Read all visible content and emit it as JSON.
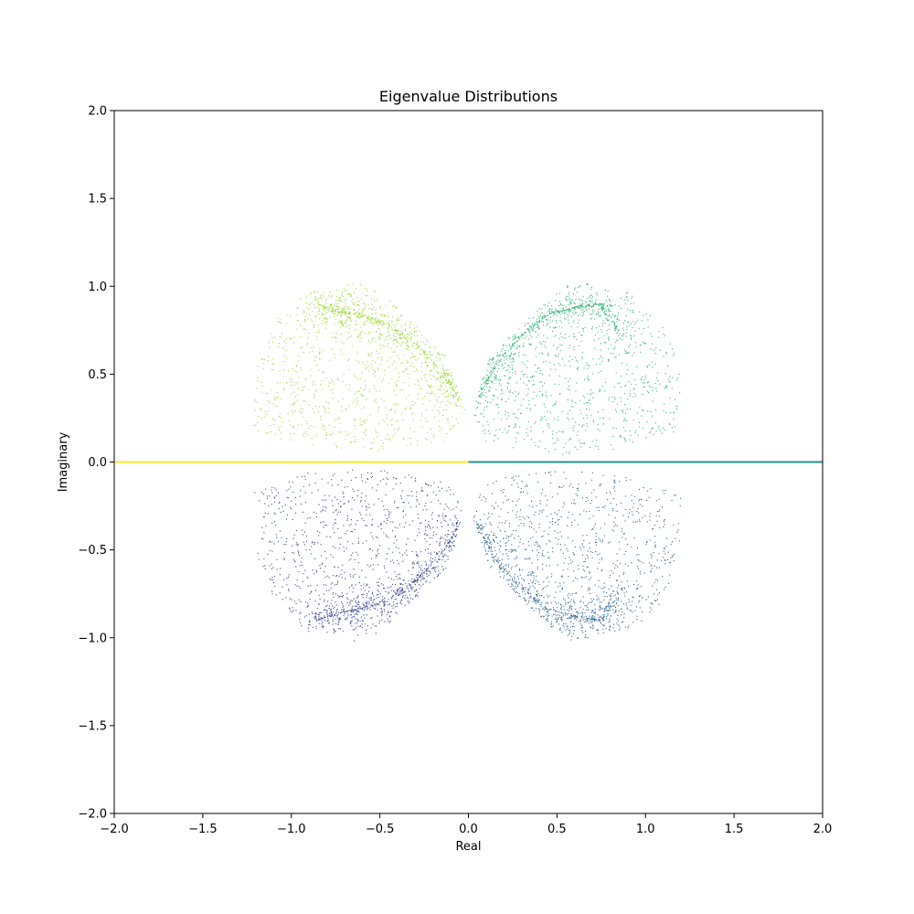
{
  "chart_data": {
    "type": "scatter",
    "title": "Eigenvalue Distributions",
    "xlabel": "Real",
    "ylabel": "Imaginary",
    "xlim": [
      -2.0,
      2.0
    ],
    "ylim": [
      -2.0,
      2.0
    ],
    "x_ticks": [
      "−2.0",
      "−1.5",
      "−1.0",
      "−0.5",
      "0.0",
      "0.5",
      "1.0",
      "1.5",
      "2.0"
    ],
    "y_ticks": [
      "−2.0",
      "−1.5",
      "−1.0",
      "−0.5",
      "0.0",
      "0.5",
      "1.0",
      "1.5",
      "2.0"
    ],
    "grid": false,
    "legend": "none",
    "colormap": "viridis",
    "series": [
      {
        "color": "#fde725",
        "kind": "real_axis_segment",
        "x_range": [
          -2.0,
          0.0
        ],
        "y": 0.0
      },
      {
        "color": "#21918c",
        "kind": "real_axis_segment",
        "x_range": [
          0.0,
          2.0
        ],
        "y": 0.0
      },
      {
        "color": "#a0da39",
        "kind": "cloud",
        "approx_points": 1500,
        "outline": [
          [
            -1.22,
            0.18
          ],
          [
            -1.19,
            0.55
          ],
          [
            -1.08,
            0.82
          ],
          [
            -0.9,
            0.97
          ],
          [
            -0.75,
            0.98
          ],
          [
            -0.62,
            1.04
          ],
          [
            -0.5,
            0.97
          ],
          [
            -0.3,
            0.78
          ],
          [
            -0.12,
            0.6
          ],
          [
            -0.02,
            0.3
          ],
          [
            -0.1,
            0.12
          ],
          [
            -0.55,
            0.06
          ],
          [
            -0.9,
            0.1
          ],
          [
            -1.2,
            0.12
          ]
        ],
        "dense_band": [
          [
            -0.85,
            0.9
          ],
          [
            -0.75,
            0.86
          ],
          [
            -0.62,
            0.84
          ],
          [
            -0.45,
            0.78
          ],
          [
            -0.28,
            0.66
          ],
          [
            -0.12,
            0.48
          ],
          [
            -0.05,
            0.35
          ]
        ]
      },
      {
        "color": "#3e4a89",
        "kind": "cloud",
        "approx_points": 1500,
        "outline": [
          [
            -1.2,
            -0.12
          ],
          [
            -1.19,
            -0.55
          ],
          [
            -1.08,
            -0.82
          ],
          [
            -0.9,
            -0.97
          ],
          [
            -0.75,
            -0.98
          ],
          [
            -0.62,
            -1.04
          ],
          [
            -0.5,
            -0.97
          ],
          [
            -0.3,
            -0.78
          ],
          [
            -0.12,
            -0.6
          ],
          [
            -0.02,
            -0.3
          ],
          [
            -0.1,
            -0.12
          ],
          [
            -0.55,
            -0.03
          ],
          [
            -0.9,
            -0.06
          ],
          [
            -1.22,
            -0.18
          ]
        ],
        "dense_band": [
          [
            -0.85,
            -0.9
          ],
          [
            -0.75,
            -0.86
          ],
          [
            -0.62,
            -0.84
          ],
          [
            -0.45,
            -0.78
          ],
          [
            -0.28,
            -0.66
          ],
          [
            -0.12,
            -0.48
          ],
          [
            -0.05,
            -0.35
          ]
        ]
      },
      {
        "color": "#35b779",
        "kind": "cloud",
        "approx_points": 1500,
        "outline": [
          [
            0.02,
            0.3
          ],
          [
            0.12,
            0.6
          ],
          [
            0.3,
            0.78
          ],
          [
            0.5,
            0.97
          ],
          [
            0.62,
            1.04
          ],
          [
            0.75,
            0.98
          ],
          [
            0.9,
            0.97
          ],
          [
            1.08,
            0.82
          ],
          [
            1.19,
            0.55
          ],
          [
            1.2,
            0.18
          ],
          [
            0.88,
            0.08
          ],
          [
            0.55,
            0.04
          ],
          [
            0.1,
            0.1
          ]
        ],
        "dense_band": [
          [
            0.05,
            0.35
          ],
          [
            0.15,
            0.55
          ],
          [
            0.3,
            0.72
          ],
          [
            0.45,
            0.84
          ],
          [
            0.6,
            0.88
          ],
          [
            0.75,
            0.9
          ],
          [
            0.85,
            0.75
          ]
        ]
      },
      {
        "color": "#31688e",
        "kind": "cloud",
        "approx_points": 1500,
        "outline": [
          [
            0.02,
            -0.3
          ],
          [
            0.12,
            -0.6
          ],
          [
            0.3,
            -0.78
          ],
          [
            0.5,
            -0.97
          ],
          [
            0.62,
            -1.04
          ],
          [
            0.75,
            -0.98
          ],
          [
            0.9,
            -0.97
          ],
          [
            1.08,
            -0.82
          ],
          [
            1.19,
            -0.55
          ],
          [
            1.2,
            -0.18
          ],
          [
            0.88,
            -0.08
          ],
          [
            0.55,
            -0.04
          ],
          [
            0.1,
            -0.1
          ]
        ],
        "dense_band": [
          [
            0.05,
            -0.35
          ],
          [
            0.15,
            -0.55
          ],
          [
            0.3,
            -0.72
          ],
          [
            0.45,
            -0.84
          ],
          [
            0.6,
            -0.88
          ],
          [
            0.75,
            -0.9
          ],
          [
            0.85,
            -0.75
          ]
        ]
      }
    ]
  }
}
